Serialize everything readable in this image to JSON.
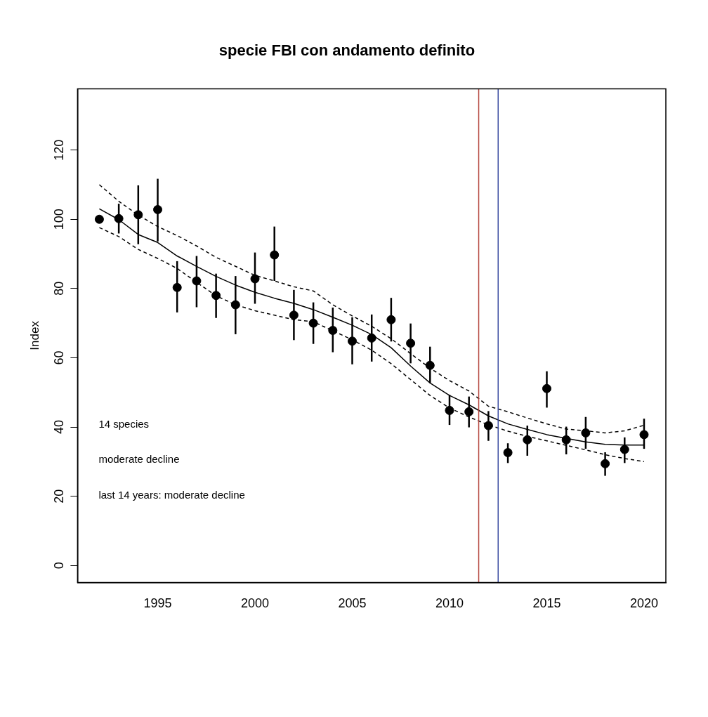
{
  "chart_data": {
    "type": "scatter",
    "title": "specie FBI con andamento definito",
    "ylabel": "Index",
    "x": [
      1992,
      1993,
      1994,
      1995,
      1996,
      1997,
      1998,
      1999,
      2000,
      2001,
      2002,
      2003,
      2004,
      2005,
      2006,
      2007,
      2008,
      2009,
      2010,
      2011,
      2012,
      2013,
      2014,
      2015,
      2016,
      2017,
      2018,
      2019,
      2020
    ],
    "series": [
      {
        "color": "#000000",
        "marker": "circle",
        "values": [
          100,
          100.2,
          101.3,
          102.8,
          80.3,
          82.2,
          78.0,
          75.3,
          82.8,
          89.7,
          72.3,
          70.0,
          67.9,
          64.8,
          65.7,
          71.0,
          64.2,
          57.8,
          44.8,
          44.4,
          40.4,
          32.6,
          36.3,
          51.1,
          36.3,
          38.3,
          29.4,
          33.5,
          37.8
        ],
        "errors": [
          null,
          [
            95.9,
            104.5
          ],
          [
            92.8,
            109.8
          ],
          [
            93.6,
            111.7
          ],
          [
            73.1,
            87.9
          ],
          [
            74.6,
            89.4
          ],
          [
            71.5,
            84.3
          ],
          [
            66.8,
            83.6
          ],
          [
            75.6,
            90.4
          ],
          [
            82.2,
            97.9
          ],
          [
            65.1,
            79.6
          ],
          [
            64.0,
            76.0
          ],
          [
            61.6,
            74.5
          ],
          [
            58.1,
            71.7
          ],
          [
            58.9,
            72.5
          ],
          [
            64.7,
            77.3
          ],
          [
            58.4,
            69.9
          ],
          [
            52.7,
            63.2
          ],
          [
            40.6,
            49.3
          ],
          [
            39.9,
            48.8
          ],
          [
            36.0,
            44.6
          ],
          [
            29.6,
            35.3
          ],
          [
            31.7,
            40.4
          ],
          [
            45.6,
            56.1
          ],
          [
            32.1,
            40.1
          ],
          [
            33.7,
            42.9
          ],
          [
            25.9,
            32.7
          ],
          [
            29.6,
            37.0
          ],
          [
            33.7,
            42.4
          ]
        ]
      },
      {
        "type": "line",
        "color": "#000000",
        "marker": "none",
        "line_style": "solid",
        "values": [
          103.0,
          99.9,
          95.6,
          93.3,
          89.4,
          86.4,
          83.5,
          81.0,
          78.9,
          77.2,
          75.7,
          73.9,
          71.7,
          69.4,
          66.7,
          62.9,
          57.6,
          52.7,
          49.1,
          46.4,
          43.2,
          40.9,
          39.3,
          37.8,
          36.7,
          35.7,
          35.0,
          34.8,
          34.8
        ]
      },
      {
        "type": "line",
        "color": "#000000",
        "marker": "none",
        "line_style": "dashed",
        "values": [
          110.0,
          105.2,
          101.2,
          97.9,
          95.3,
          92.3,
          89.0,
          86.4,
          83.8,
          82.2,
          80.5,
          79.3,
          75.3,
          72.1,
          69.1,
          65.5,
          61.2,
          57.0,
          53.4,
          50.4,
          46.0,
          44.4,
          42.6,
          40.9,
          39.4,
          38.9,
          38.3,
          38.9,
          40.5
        ]
      },
      {
        "type": "line",
        "color": "#000000",
        "marker": "none",
        "line_style": "dashed",
        "values": [
          97.6,
          95.0,
          91.3,
          88.7,
          85.8,
          81.8,
          77.9,
          75.3,
          73.6,
          72.3,
          71.0,
          70.4,
          67.8,
          65.2,
          62.2,
          58.3,
          53.7,
          49.1,
          45.5,
          42.9,
          40.6,
          38.8,
          37.3,
          36.0,
          34.7,
          33.4,
          32.0,
          30.9,
          30.0
        ]
      }
    ],
    "ref_lines": [
      {
        "axis": "x",
        "value": 2011.5,
        "color": "#b5463f"
      },
      {
        "axis": "x",
        "value": 2012.5,
        "color": "#3b4ba0"
      }
    ],
    "annotations": [
      "14 species",
      "moderate decline",
      "last 14 years: moderate decline"
    ],
    "xlim": [
      1990.88,
      2021.12
    ],
    "xticks": [
      1995,
      2000,
      2005,
      2010,
      2015,
      2020
    ],
    "ylim": [
      -4.9,
      137.7
    ],
    "yticks": [
      0,
      20,
      40,
      60,
      80,
      100,
      120
    ],
    "grid": false,
    "legend": false
  }
}
